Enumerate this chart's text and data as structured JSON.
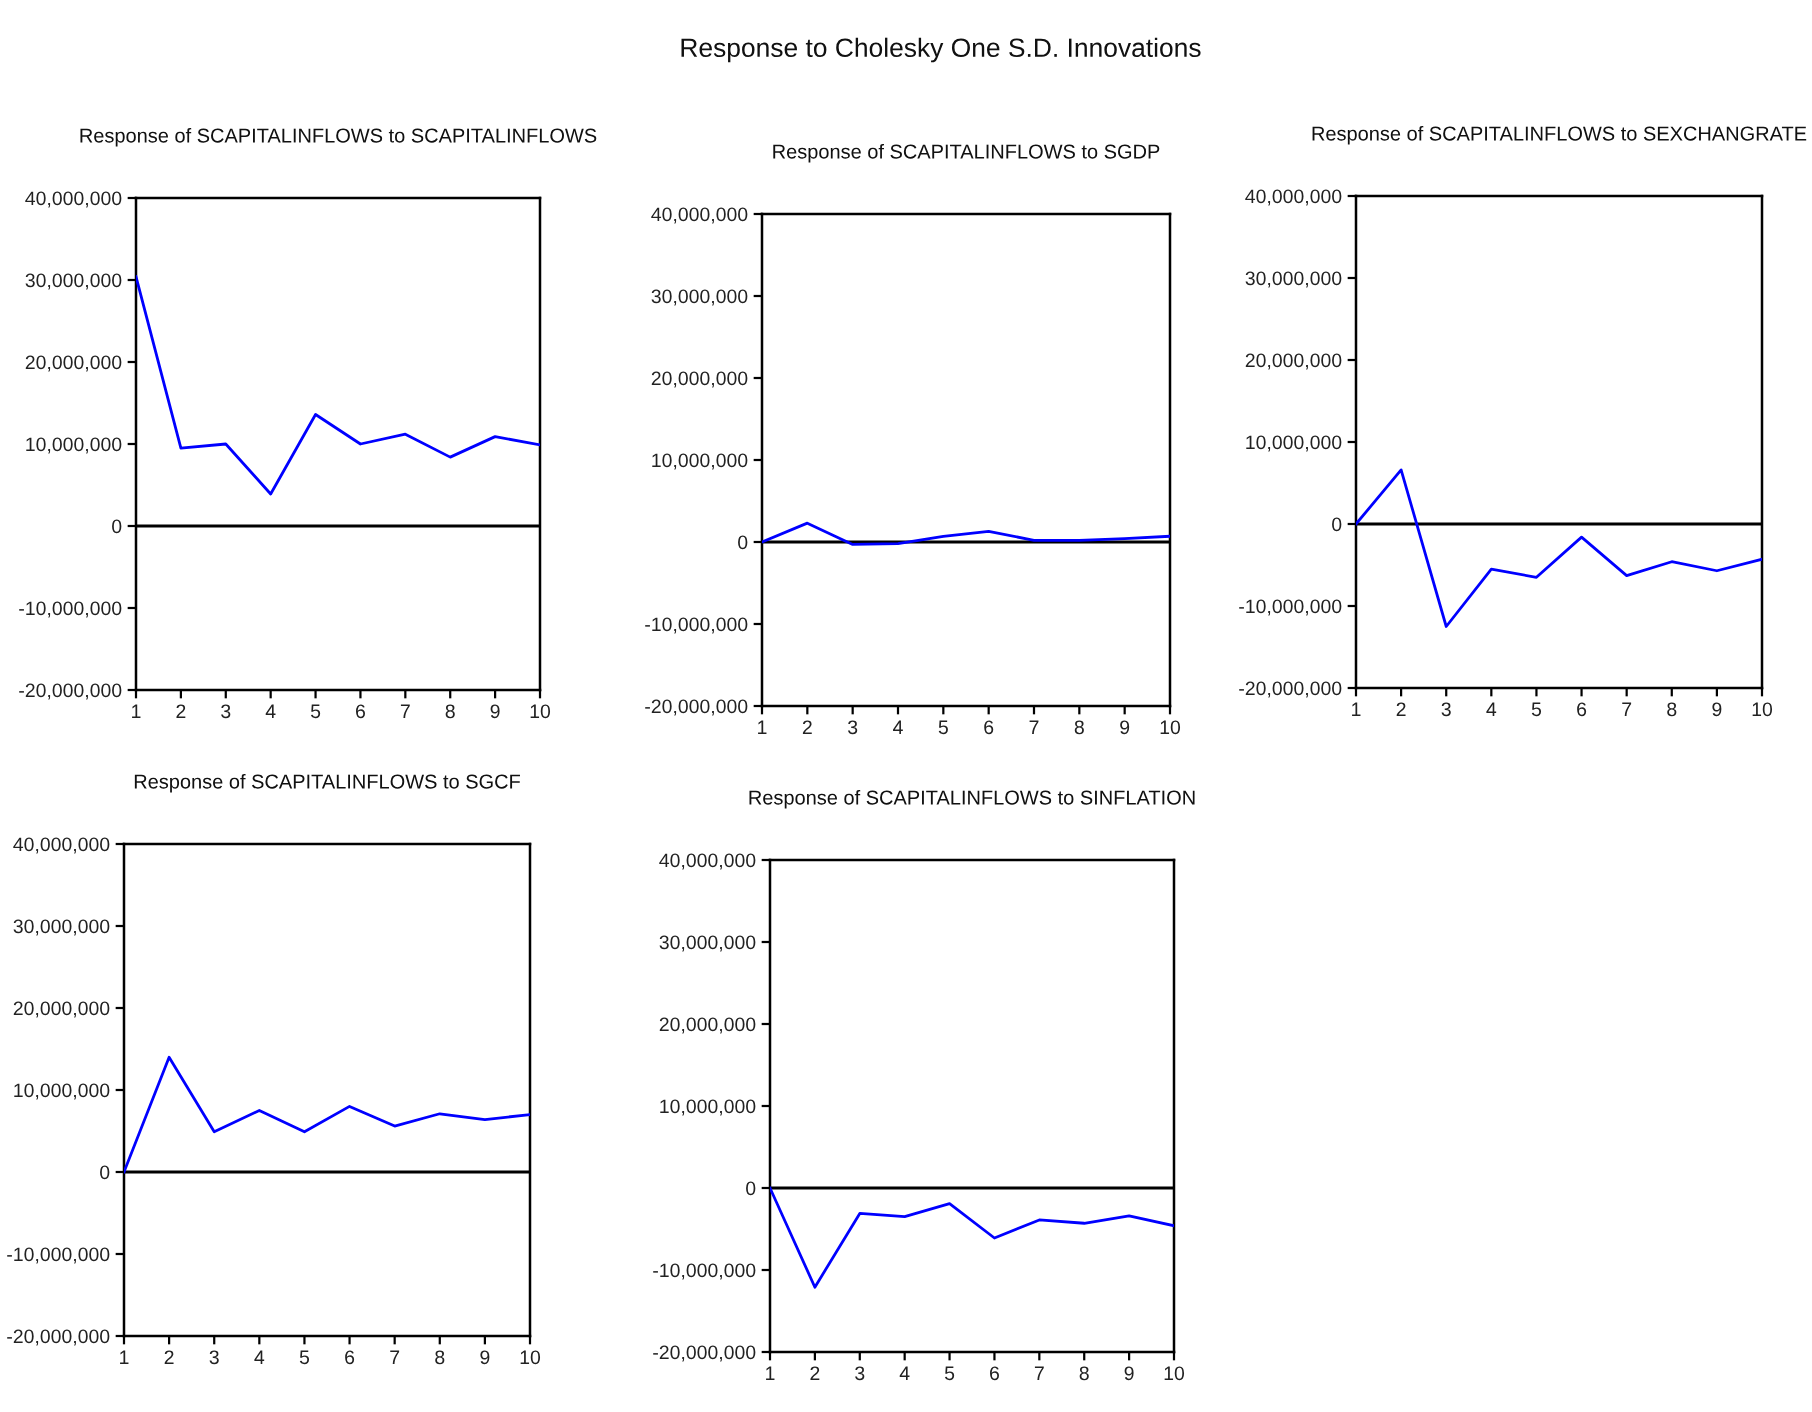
{
  "chart_data": [
    {
      "type": "line",
      "title": "Response of SCAPITALINFLOWS to SCAPITALINFLOWS",
      "annotations": [
        "Response to Cholesky One S.D. Innovations"
      ],
      "x": [
        1,
        2,
        3,
        4,
        5,
        6,
        7,
        8,
        9,
        10
      ],
      "values": [
        30400000,
        9500000,
        10000000,
        3900000,
        13600000,
        10000000,
        11200000,
        8400000,
        10900000,
        9900000
      ],
      "color": "#0000ff",
      "xlim": [
        1,
        10
      ],
      "xticks": [
        1,
        2,
        3,
        4,
        5,
        6,
        7,
        8,
        9,
        10
      ],
      "ylim": [
        -20000000,
        40000000
      ],
      "yticks": [
        {
          "value": -20000000,
          "label": "-20,000,000"
        },
        {
          "value": -10000000,
          "label": "-10,000,000"
        },
        0,
        {
          "value": 10000000,
          "label": "10,000,000"
        },
        {
          "value": 20000000,
          "label": "20,000,000"
        },
        {
          "value": 30000000,
          "label": "30,000,000"
        },
        {
          "value": 40000000,
          "label": "40,000,000"
        }
      ],
      "ref_lines": [
        {
          "axis": "y",
          "value": 0,
          "color": "#000000"
        }
      ]
    },
    {
      "type": "line",
      "title": "Response of SCAPITALINFLOWS to SGDP",
      "x": [
        1,
        2,
        3,
        4,
        5,
        6,
        7,
        8,
        9,
        10
      ],
      "values": [
        0,
        2300000,
        -300000,
        -200000,
        700000,
        1300000,
        200000,
        200000,
        400000,
        700000
      ],
      "color": "#0000ff",
      "xlim": [
        1,
        10
      ],
      "xticks": [
        1,
        2,
        3,
        4,
        5,
        6,
        7,
        8,
        9,
        10
      ],
      "ylim": [
        -20000000,
        40000000
      ],
      "yticks": [
        {
          "value": -20000000,
          "label": "-20,000,000"
        },
        {
          "value": -10000000,
          "label": "-10,000,000"
        },
        0,
        {
          "value": 10000000,
          "label": "10,000,000"
        },
        {
          "value": 20000000,
          "label": "20,000,000"
        },
        {
          "value": 30000000,
          "label": "30,000,000"
        },
        {
          "value": 40000000,
          "label": "40,000,000"
        }
      ],
      "ref_lines": [
        {
          "axis": "y",
          "value": 0,
          "color": "#000000"
        }
      ]
    },
    {
      "type": "line",
      "title": "Response of SCAPITALINFLOWS to SEXCHANGRATE",
      "x": [
        1,
        2,
        3,
        4,
        5,
        6,
        7,
        8,
        9,
        10
      ],
      "values": [
        0,
        6600000,
        -12500000,
        -5500000,
        -6500000,
        -1600000,
        -6300000,
        -4600000,
        -5700000,
        -4300000
      ],
      "color": "#0000ff",
      "xlim": [
        1,
        10
      ],
      "xticks": [
        1,
        2,
        3,
        4,
        5,
        6,
        7,
        8,
        9,
        10
      ],
      "ylim": [
        -20000000,
        40000000
      ],
      "yticks": [
        {
          "value": -20000000,
          "label": "-20,000,000"
        },
        {
          "value": -10000000,
          "label": "-10,000,000"
        },
        0,
        {
          "value": 10000000,
          "label": "10,000,000"
        },
        {
          "value": 20000000,
          "label": "20,000,000"
        },
        {
          "value": 30000000,
          "label": "30,000,000"
        },
        {
          "value": 40000000,
          "label": "40,000,000"
        }
      ],
      "ref_lines": [
        {
          "axis": "y",
          "value": 0,
          "color": "#000000"
        }
      ]
    },
    {
      "type": "line",
      "title": "Response of SCAPITALINFLOWS to SGCF",
      "x": [
        1,
        2,
        3,
        4,
        5,
        6,
        7,
        8,
        9,
        10
      ],
      "values": [
        0,
        14000000,
        4900000,
        7500000,
        4900000,
        8000000,
        5600000,
        7100000,
        6400000,
        7000000
      ],
      "color": "#0000ff",
      "xlim": [
        1,
        10
      ],
      "xticks": [
        1,
        2,
        3,
        4,
        5,
        6,
        7,
        8,
        9,
        10
      ],
      "ylim": [
        -20000000,
        40000000
      ],
      "yticks": [
        {
          "value": -20000000,
          "label": "-20,000,000"
        },
        {
          "value": -10000000,
          "label": "-10,000,000"
        },
        0,
        {
          "value": 10000000,
          "label": "10,000,000"
        },
        {
          "value": 20000000,
          "label": "20,000,000"
        },
        {
          "value": 30000000,
          "label": "30,000,000"
        },
        {
          "value": 40000000,
          "label": "40,000,000"
        }
      ],
      "ref_lines": [
        {
          "axis": "y",
          "value": 0,
          "color": "#000000"
        }
      ]
    },
    {
      "type": "line",
      "title": "Response of SCAPITALINFLOWS to SINFLATION",
      "x": [
        1,
        2,
        3,
        4,
        5,
        6,
        7,
        8,
        9,
        10
      ],
      "values": [
        0,
        -12100000,
        -3100000,
        -3500000,
        -1900000,
        -6100000,
        -3900000,
        -4300000,
        -3400000,
        -4600000
      ],
      "color": "#0000ff",
      "xlim": [
        1,
        10
      ],
      "xticks": [
        1,
        2,
        3,
        4,
        5,
        6,
        7,
        8,
        9,
        10
      ],
      "ylim": [
        -20000000,
        40000000
      ],
      "yticks": [
        {
          "value": -20000000,
          "label": "-20,000,000"
        },
        {
          "value": -10000000,
          "label": "-10,000,000"
        },
        0,
        {
          "value": 10000000,
          "label": "10,000,000"
        },
        {
          "value": 20000000,
          "label": "20,000,000"
        },
        {
          "value": 30000000,
          "label": "30,000,000"
        },
        {
          "value": 40000000,
          "label": "40,000,000"
        }
      ],
      "ref_lines": [
        {
          "axis": "y",
          "value": 0,
          "color": "#000000"
        }
      ]
    }
  ]
}
